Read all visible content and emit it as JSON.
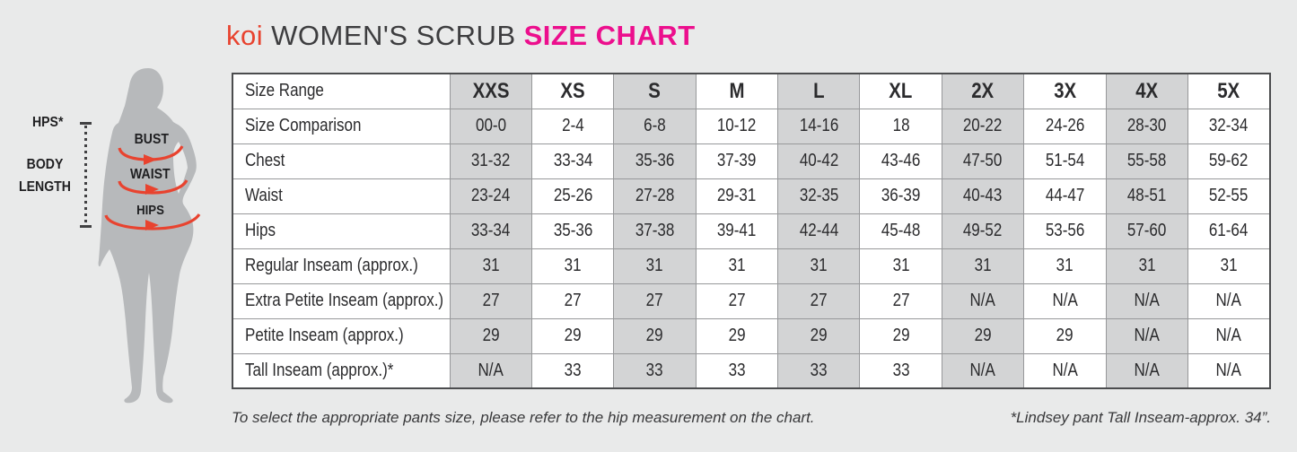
{
  "page": {
    "background": "#e9eaea"
  },
  "title": {
    "brand": "koi",
    "main": "WOMEN'S SCRUB",
    "accent": "SIZE CHART",
    "brand_color": "#e8432f",
    "accent_color": "#ec0f8d"
  },
  "figure": {
    "silhouette_color": "#b7b9bb",
    "arrow_color": "#e8432f",
    "labels": {
      "hps": "HPS*",
      "body_length_line1": "BODY",
      "body_length_line2": "LENGTH",
      "bust": "BUST",
      "waist": "WAIST",
      "hips": "HIPS"
    }
  },
  "table": {
    "shaded_color": "#d3d4d5",
    "columns": [
      "Size Range",
      "XXS",
      "XS",
      "S",
      "M",
      "L",
      "XL",
      "2X",
      "3X",
      "4X",
      "5X"
    ],
    "rows": [
      {
        "label": "Size Comparison",
        "values": [
          "00-0",
          "2-4",
          "6-8",
          "10-12",
          "14-16",
          "18",
          "20-22",
          "24-26",
          "28-30",
          "32-34"
        ]
      },
      {
        "label": "Chest",
        "values": [
          "31-32",
          "33-34",
          "35-36",
          "37-39",
          "40-42",
          "43-46",
          "47-50",
          "51-54",
          "55-58",
          "59-62"
        ]
      },
      {
        "label": "Waist",
        "values": [
          "23-24",
          "25-26",
          "27-28",
          "29-31",
          "32-35",
          "36-39",
          "40-43",
          "44-47",
          "48-51",
          "52-55"
        ]
      },
      {
        "label": "Hips",
        "values": [
          "33-34",
          "35-36",
          "37-38",
          "39-41",
          "42-44",
          "45-48",
          "49-52",
          "53-56",
          "57-60",
          "61-64"
        ]
      },
      {
        "label": "Regular Inseam (approx.)",
        "values": [
          "31",
          "31",
          "31",
          "31",
          "31",
          "31",
          "31",
          "31",
          "31",
          "31"
        ]
      },
      {
        "label": "Extra Petite Inseam (approx.)",
        "values": [
          "27",
          "27",
          "27",
          "27",
          "27",
          "27",
          "N/A",
          "N/A",
          "N/A",
          "N/A"
        ]
      },
      {
        "label": "Petite Inseam (approx.)",
        "values": [
          "29",
          "29",
          "29",
          "29",
          "29",
          "29",
          "29",
          "29",
          "N/A",
          "N/A"
        ]
      },
      {
        "label": "Tall Inseam (approx.)*",
        "values": [
          "N/A",
          "33",
          "33",
          "33",
          "33",
          "33",
          "N/A",
          "N/A",
          "N/A",
          "N/A"
        ]
      }
    ]
  },
  "footnotes": {
    "left": "To select the appropriate pants size, please refer to the hip measurement on the chart.",
    "right": "*Lindsey pant Tall Inseam-approx. 34”."
  }
}
